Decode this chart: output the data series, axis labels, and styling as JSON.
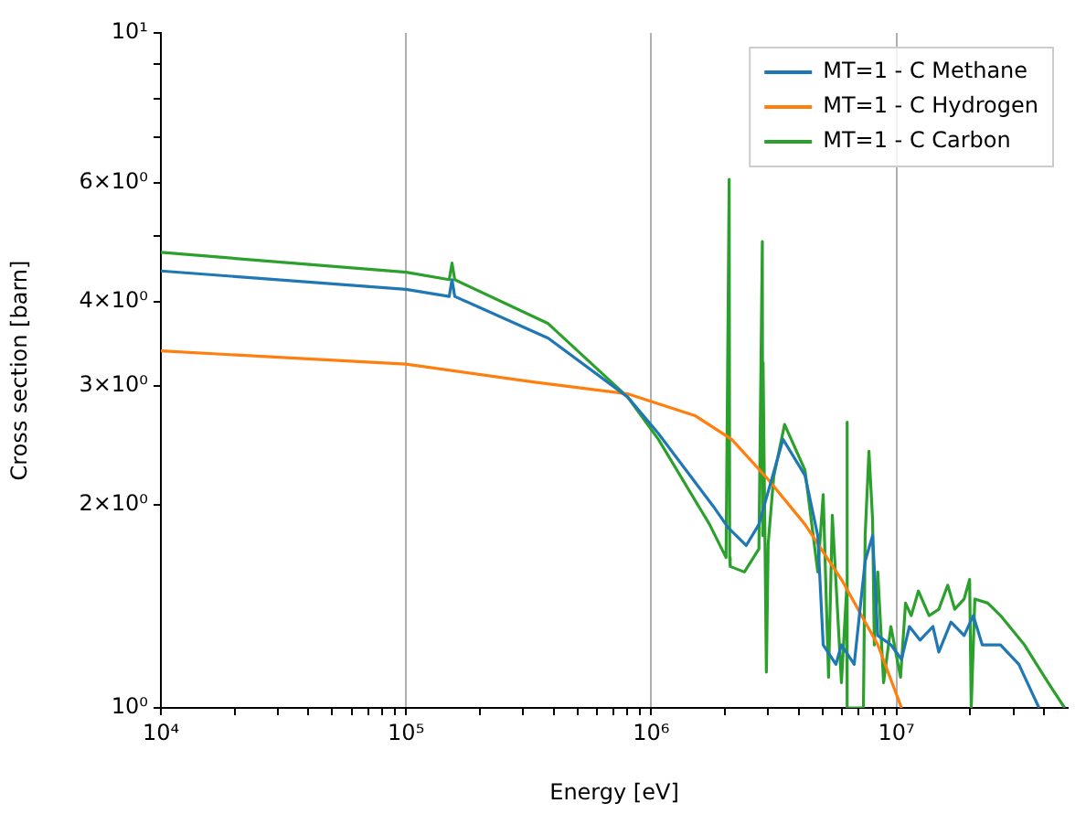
{
  "chart_data": {
    "type": "line",
    "xlabel": "Energy [eV]",
    "ylabel": "Cross section [barn]",
    "log": "xy",
    "grid": "x",
    "legend": "top right",
    "marker": "none",
    "line_style": "solid",
    "xlim": [
      10000,
      50000000
    ],
    "xticks": [
      {
        "value": 10000,
        "label": "10⁴"
      },
      {
        "value": 20000,
        "label": null
      },
      {
        "value": 30000,
        "label": null
      },
      {
        "value": 40000,
        "label": null
      },
      {
        "value": 50000,
        "label": null
      },
      {
        "value": 60000,
        "label": null
      },
      {
        "value": 70000,
        "label": null
      },
      {
        "value": 80000,
        "label": null
      },
      {
        "value": 90000,
        "label": null
      },
      {
        "value": 100000,
        "label": "10⁵"
      },
      {
        "value": 200000,
        "label": null
      },
      {
        "value": 300000,
        "label": null
      },
      {
        "value": 400000,
        "label": null
      },
      {
        "value": 500000,
        "label": null
      },
      {
        "value": 600000,
        "label": null
      },
      {
        "value": 700000,
        "label": null
      },
      {
        "value": 800000,
        "label": null
      },
      {
        "value": 900000,
        "label": null
      },
      {
        "value": 1000000,
        "label": "10⁶"
      },
      {
        "value": 2000000,
        "label": null
      },
      {
        "value": 3000000,
        "label": null
      },
      {
        "value": 4000000,
        "label": null
      },
      {
        "value": 5000000,
        "label": null
      },
      {
        "value": 6000000,
        "label": null
      },
      {
        "value": 7000000,
        "label": null
      },
      {
        "value": 8000000,
        "label": null
      },
      {
        "value": 9000000,
        "label": null
      },
      {
        "value": 10000000,
        "label": "10⁷"
      },
      {
        "value": 20000000,
        "label": null
      },
      {
        "value": 30000000,
        "label": null
      },
      {
        "value": 40000000,
        "label": null
      }
    ],
    "ylim": [
      1,
      10
    ],
    "yticks": [
      {
        "value": 1,
        "label": "10⁰"
      },
      {
        "value": 2,
        "label": "2×10⁰"
      },
      {
        "value": 3,
        "label": "3×10⁰"
      },
      {
        "value": 4,
        "label": "4×10⁰"
      },
      {
        "value": 5,
        "label": null
      },
      {
        "value": 6,
        "label": "6×10⁰"
      },
      {
        "value": 7,
        "label": null
      },
      {
        "value": 8,
        "label": null
      },
      {
        "value": 9,
        "label": null
      },
      {
        "value": 10,
        "label": "10¹"
      }
    ],
    "series": [
      {
        "name": "MT=1 - C Methane",
        "color": "#1f77b4",
        "x": [
          10000,
          100000,
          150000,
          154000,
          158000,
          380000,
          800000,
          1070000,
          1790000,
          2060000,
          2440000,
          2750000,
          3450000,
          4240000,
          4780000,
          5030000,
          5670000,
          5970000,
          6730000,
          7460000,
          8000000,
          8400000,
          9500000,
          10500000,
          11300000,
          12500000,
          14100000,
          14900000,
          16700000,
          18900000,
          20600000,
          22400000,
          26600000,
          31600000,
          38200000
        ],
        "values": [
          4.44,
          4.17,
          4.07,
          4.31,
          4.07,
          3.53,
          2.89,
          2.55,
          1.99,
          1.85,
          1.74,
          1.87,
          2.5,
          2.21,
          1.8,
          1.24,
          1.16,
          1.24,
          1.16,
          1.65,
          1.8,
          1.28,
          1.24,
          1.18,
          1.32,
          1.26,
          1.32,
          1.21,
          1.34,
          1.28,
          1.37,
          1.24,
          1.24,
          1.16,
          1.0
        ]
      },
      {
        "name": "MT=1 - C Hydrogen",
        "color": "#ff7f0e",
        "x": [
          10000,
          100000,
          330000,
          800000,
          1510000,
          2130000,
          3000000,
          4240000,
          5970000,
          8400000,
          10500000
        ],
        "values": [
          3.38,
          3.23,
          3.04,
          2.92,
          2.71,
          2.5,
          2.18,
          1.87,
          1.55,
          1.24,
          1.0
        ]
      },
      {
        "name": "MT=1 - C Carbon",
        "color": "#2ca02c",
        "x": [
          10000,
          100000,
          150000,
          154000,
          158000,
          380000,
          800000,
          1070000,
          1730000,
          2020000,
          2080000,
          2090000,
          2100000,
          2400000,
          2750000,
          2840000,
          2850000,
          2860000,
          2950000,
          3000000,
          3160000,
          3500000,
          4240000,
          4780000,
          5030000,
          5290000,
          5480000,
          5970000,
          6270000,
          6290000,
          6310000,
          6510000,
          7340000,
          7460000,
          7730000,
          8000000,
          8130000,
          8400000,
          8870000,
          9500000,
          10400000,
          10900000,
          11500000,
          12300000,
          13600000,
          14900000,
          16200000,
          17300000,
          18900000,
          19900000,
          20200000,
          20900000,
          23600000,
          26600000,
          33300000,
          41600000,
          48600000
        ],
        "values": [
          4.73,
          4.42,
          4.31,
          4.56,
          4.31,
          3.71,
          2.89,
          2.5,
          1.87,
          1.67,
          6.07,
          1.67,
          1.62,
          1.59,
          1.72,
          4.91,
          1.8,
          3.25,
          1.13,
          1.75,
          2.2,
          2.63,
          2.25,
          1.59,
          2.07,
          1.11,
          1.93,
          1.09,
          1.5,
          2.65,
          1.0,
          1.0,
          1.0,
          1.8,
          2.4,
          1.9,
          1.24,
          1.59,
          1.09,
          1.32,
          1.11,
          1.43,
          1.37,
          1.49,
          1.37,
          1.4,
          1.52,
          1.4,
          1.45,
          1.55,
          1.0,
          1.45,
          1.43,
          1.37,
          1.24,
          1.09,
          1.0
        ]
      }
    ]
  }
}
